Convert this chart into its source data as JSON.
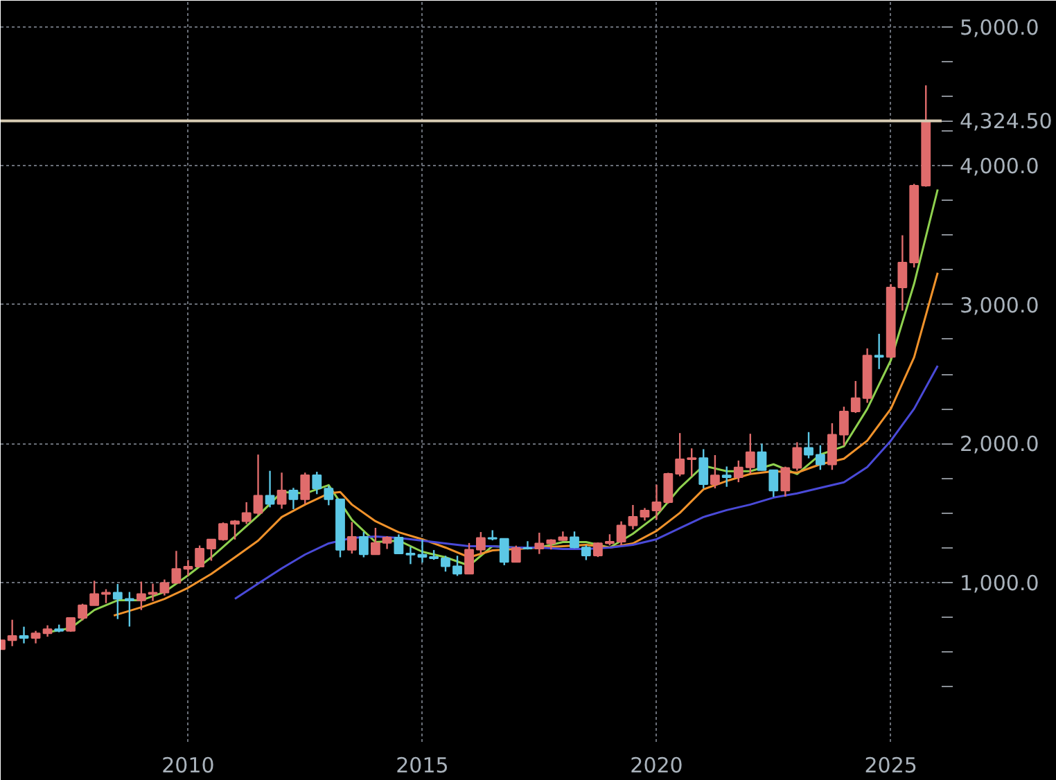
{
  "chart_data": {
    "type": "candlestick",
    "x": [
      "2006-01",
      "2006-04",
      "2006-07",
      "2006-10",
      "2007-01",
      "2007-04",
      "2007-07",
      "2007-10",
      "2008-01",
      "2008-04",
      "2008-07",
      "2008-10",
      "2009-01",
      "2009-04",
      "2009-07",
      "2009-10",
      "2010-01",
      "2010-04",
      "2010-07",
      "2010-10",
      "2011-01",
      "2011-04",
      "2011-07",
      "2011-10",
      "2012-01",
      "2012-04",
      "2012-07",
      "2012-10",
      "2013-01",
      "2013-04",
      "2013-07",
      "2013-10",
      "2014-01",
      "2014-04",
      "2014-07",
      "2014-10",
      "2015-01",
      "2015-04",
      "2015-07",
      "2015-10",
      "2016-01",
      "2016-04",
      "2016-07",
      "2016-10",
      "2017-01",
      "2017-04",
      "2017-07",
      "2017-10",
      "2018-01",
      "2018-04",
      "2018-07",
      "2018-10",
      "2019-01",
      "2019-04",
      "2019-07",
      "2019-10",
      "2020-01",
      "2020-04",
      "2020-07",
      "2020-10",
      "2021-01",
      "2021-04",
      "2021-07",
      "2021-10",
      "2022-01",
      "2022-04",
      "2022-07",
      "2022-10",
      "2023-01",
      "2023-04",
      "2023-07",
      "2023-10",
      "2024-01",
      "2024-04",
      "2024-07",
      "2024-10",
      "2025-01",
      "2025-04",
      "2025-07",
      "2025-10"
    ],
    "ohlc": [
      [
        517,
        585,
        517,
        582
      ],
      [
        582,
        730,
        540,
        614
      ],
      [
        614,
        680,
        560,
        599
      ],
      [
        599,
        650,
        560,
        632
      ],
      [
        632,
        690,
        608,
        662
      ],
      [
        662,
        695,
        640,
        650
      ],
      [
        650,
        745,
        643,
        743
      ],
      [
        743,
        845,
        725,
        834
      ],
      [
        834,
        1011,
        833,
        916
      ],
      [
        916,
        950,
        850,
        925
      ],
      [
        925,
        988,
        735,
        880
      ],
      [
        880,
        930,
        681,
        869
      ],
      [
        869,
        1005,
        800,
        916
      ],
      [
        916,
        990,
        865,
        926
      ],
      [
        926,
        1020,
        905,
        995
      ],
      [
        995,
        1226,
        995,
        1096
      ],
      [
        1096,
        1160,
        1045,
        1113
      ],
      [
        1113,
        1265,
        1110,
        1243
      ],
      [
        1243,
        1310,
        1155,
        1308
      ],
      [
        1308,
        1431,
        1300,
        1421
      ],
      [
        1421,
        1448,
        1308,
        1439
      ],
      [
        1439,
        1577,
        1420,
        1500
      ],
      [
        1500,
        1920,
        1485,
        1624
      ],
      [
        1624,
        1803,
        1540,
        1564
      ],
      [
        1564,
        1790,
        1530,
        1662
      ],
      [
        1662,
        1680,
        1527,
        1598
      ],
      [
        1598,
        1790,
        1565,
        1772
      ],
      [
        1772,
        1796,
        1635,
        1675
      ],
      [
        1675,
        1695,
        1555,
        1598
      ],
      [
        1598,
        1600,
        1180,
        1234
      ],
      [
        1234,
        1434,
        1207,
        1327
      ],
      [
        1327,
        1362,
        1180,
        1201
      ],
      [
        1201,
        1392,
        1200,
        1284
      ],
      [
        1284,
        1332,
        1240,
        1322
      ],
      [
        1322,
        1345,
        1205,
        1208
      ],
      [
        1208,
        1255,
        1131,
        1199
      ],
      [
        1199,
        1307,
        1142,
        1183
      ],
      [
        1183,
        1232,
        1162,
        1172
      ],
      [
        1172,
        1191,
        1077,
        1115
      ],
      [
        1115,
        1191,
        1046,
        1061
      ],
      [
        1061,
        1283,
        1060,
        1235
      ],
      [
        1235,
        1362,
        1200,
        1320
      ],
      [
        1320,
        1375,
        1302,
        1313
      ],
      [
        1313,
        1313,
        1123,
        1146
      ],
      [
        1146,
        1264,
        1146,
        1247
      ],
      [
        1247,
        1296,
        1236,
        1242
      ],
      [
        1242,
        1357,
        1204,
        1280
      ],
      [
        1280,
        1310,
        1236,
        1303
      ],
      [
        1303,
        1366,
        1300,
        1325
      ],
      [
        1325,
        1366,
        1245,
        1251
      ],
      [
        1251,
        1266,
        1160,
        1192
      ],
      [
        1192,
        1287,
        1182,
        1281
      ],
      [
        1281,
        1346,
        1266,
        1292
      ],
      [
        1292,
        1439,
        1266,
        1409
      ],
      [
        1409,
        1557,
        1381,
        1472
      ],
      [
        1472,
        1535,
        1445,
        1517
      ],
      [
        1517,
        1703,
        1451,
        1577
      ],
      [
        1577,
        1789,
        1567,
        1781
      ],
      [
        1781,
        2075,
        1764,
        1886
      ],
      [
        1886,
        1965,
        1764,
        1895
      ],
      [
        1895,
        1959,
        1677,
        1707
      ],
      [
        1707,
        1916,
        1677,
        1770
      ],
      [
        1770,
        1834,
        1688,
        1757
      ],
      [
        1757,
        1877,
        1721,
        1828
      ],
      [
        1828,
        2070,
        1780,
        1937
      ],
      [
        1937,
        1998,
        1805,
        1807
      ],
      [
        1807,
        1807,
        1615,
        1660
      ],
      [
        1660,
        1833,
        1618,
        1824
      ],
      [
        1824,
        2009,
        1804,
        1969
      ],
      [
        1969,
        2082,
        1893,
        1919
      ],
      [
        1919,
        1987,
        1810,
        1849
      ],
      [
        1849,
        2146,
        1810,
        2063
      ],
      [
        2063,
        2265,
        1984,
        2230
      ],
      [
        2230,
        2450,
        2220,
        2327
      ],
      [
        2327,
        2685,
        2293,
        2634
      ],
      [
        2634,
        2790,
        2536,
        2624
      ],
      [
        2624,
        3148,
        2614,
        3124
      ],
      [
        3124,
        3500,
        2957,
        3303
      ],
      [
        3303,
        3870,
        3268,
        3858
      ],
      [
        3858,
        4580,
        3850,
        4324.5
      ]
    ],
    "colors": [
      "#e06c6c",
      "#e06c6c",
      "#5cc8e6",
      "#e06c6c",
      "#e06c6c",
      "#5cc8e6",
      "#e06c6c",
      "#e06c6c",
      "#e06c6c",
      "#e06c6c",
      "#5cc8e6",
      "#5cc8e6",
      "#e06c6c",
      "#e06c6c",
      "#e06c6c",
      "#e06c6c",
      "#e06c6c",
      "#e06c6c",
      "#e06c6c",
      "#e06c6c",
      "#e06c6c",
      "#e06c6c",
      "#e06c6c",
      "#5cc8e6",
      "#e06c6c",
      "#5cc8e6",
      "#e06c6c",
      "#5cc8e6",
      "#5cc8e6",
      "#5cc8e6",
      "#e06c6c",
      "#5cc8e6",
      "#e06c6c",
      "#e06c6c",
      "#5cc8e6",
      "#5cc8e6",
      "#5cc8e6",
      "#5cc8e6",
      "#5cc8e6",
      "#5cc8e6",
      "#e06c6c",
      "#e06c6c",
      "#5cc8e6",
      "#5cc8e6",
      "#e06c6c",
      "#5cc8e6",
      "#e06c6c",
      "#e06c6c",
      "#e06c6c",
      "#5cc8e6",
      "#5cc8e6",
      "#e06c6c",
      "#e06c6c",
      "#e06c6c",
      "#e06c6c",
      "#e06c6c",
      "#e06c6c",
      "#e06c6c",
      "#e06c6c",
      "#e06c6c",
      "#5cc8e6",
      "#e06c6c",
      "#5cc8e6",
      "#e06c6c",
      "#e06c6c",
      "#5cc8e6",
      "#5cc8e6",
      "#e06c6c",
      "#e06c6c",
      "#5cc8e6",
      "#5cc8e6",
      "#e06c6c",
      "#e06c6c",
      "#e06c6c",
      "#e06c6c",
      "#5cc8e6",
      "#e06c6c",
      "#e06c6c",
      "#e06c6c",
      "#e06c6c"
    ],
    "series": [
      {
        "type": "line",
        "color": "#8fd14f",
        "x": [
          "2007-01",
          "2007-07",
          "2008-01",
          "2008-07",
          "2009-01",
          "2009-07",
          "2010-01",
          "2010-07",
          "2011-01",
          "2011-07",
          "2012-01",
          "2012-07",
          "2013-01",
          "2013-07",
          "2014-01",
          "2014-07",
          "2015-01",
          "2015-07",
          "2016-01",
          "2016-07",
          "2017-01",
          "2017-07",
          "2018-01",
          "2018-07",
          "2019-01",
          "2019-07",
          "2020-01",
          "2020-07",
          "2021-01",
          "2021-07",
          "2022-01",
          "2022-07",
          "2023-01",
          "2023-07",
          "2024-01",
          "2024-07",
          "2025-01",
          "2025-07",
          "2026-01"
        ],
        "values": [
          640,
          670,
          800,
          870,
          870,
          930,
          1050,
          1180,
          1330,
          1480,
          1650,
          1640,
          1700,
          1450,
          1290,
          1300,
          1220,
          1180,
          1120,
          1260,
          1250,
          1250,
          1290,
          1290,
          1250,
          1350,
          1480,
          1680,
          1840,
          1800,
          1800,
          1850,
          1780,
          1920,
          1980,
          2250,
          2600,
          3150,
          3830
        ]
      },
      {
        "type": "line",
        "color": "#f0922b",
        "x": [
          "2008-06",
          "2009-01",
          "2009-07",
          "2010-01",
          "2010-07",
          "2011-01",
          "2011-07",
          "2012-01",
          "2012-07",
          "2013-01",
          "2013-04",
          "2013-07",
          "2014-01",
          "2014-07",
          "2015-01",
          "2015-07",
          "2016-01",
          "2016-07",
          "2017-01",
          "2017-07",
          "2018-01",
          "2018-07",
          "2019-01",
          "2019-07",
          "2020-01",
          "2020-07",
          "2021-01",
          "2021-07",
          "2022-01",
          "2022-07",
          "2023-01",
          "2023-07",
          "2024-01",
          "2024-07",
          "2025-01",
          "2025-07",
          "2026-01"
        ],
        "values": [
          760,
          820,
          880,
          960,
          1060,
          1180,
          1300,
          1470,
          1560,
          1640,
          1650,
          1560,
          1440,
          1360,
          1310,
          1250,
          1180,
          1230,
          1240,
          1250,
          1260,
          1270,
          1250,
          1280,
          1370,
          1500,
          1670,
          1730,
          1780,
          1800,
          1790,
          1850,
          1890,
          2020,
          2250,
          2620,
          3230
        ]
      },
      {
        "type": "line",
        "color": "#4a4ad8",
        "x": [
          "2011-01",
          "2011-07",
          "2012-01",
          "2012-07",
          "2013-01",
          "2013-07",
          "2014-01",
          "2014-07",
          "2015-01",
          "2015-07",
          "2016-01",
          "2016-07",
          "2017-01",
          "2017-07",
          "2018-01",
          "2018-07",
          "2019-01",
          "2019-07",
          "2020-01",
          "2020-07",
          "2021-01",
          "2021-07",
          "2022-01",
          "2022-07",
          "2023-01",
          "2023-07",
          "2024-01",
          "2024-07",
          "2025-01",
          "2025-07",
          "2026-01"
        ],
        "values": [
          880,
          990,
          1100,
          1200,
          1280,
          1320,
          1330,
          1320,
          1300,
          1280,
          1260,
          1260,
          1250,
          1250,
          1240,
          1240,
          1250,
          1270,
          1310,
          1390,
          1470,
          1520,
          1560,
          1610,
          1640,
          1680,
          1720,
          1830,
          2020,
          2250,
          2560
        ]
      }
    ],
    "xlim": [
      "2006-01",
      "2026-02"
    ],
    "xticks": [
      {
        "value": "2010-01",
        "label": "2010"
      },
      {
        "value": "2015-01",
        "label": "2015"
      },
      {
        "value": "2020-01",
        "label": "2020"
      },
      {
        "value": "2025-01",
        "label": "2025"
      }
    ],
    "ylim": [
      -150,
      5190
    ],
    "yticks": [
      {
        "value": 250,
        "label": null
      },
      {
        "value": 500,
        "label": null
      },
      {
        "value": 750,
        "label": null
      },
      {
        "value": 1000,
        "label": "1,000.0"
      },
      {
        "value": 1250,
        "label": null
      },
      {
        "value": 1500,
        "label": null
      },
      {
        "value": 1750,
        "label": null
      },
      {
        "value": 2000,
        "label": "2,000.0"
      },
      {
        "value": 2250,
        "label": null
      },
      {
        "value": 2500,
        "label": null
      },
      {
        "value": 2750,
        "label": null
      },
      {
        "value": 3000,
        "label": "3,000.0"
      },
      {
        "value": 3250,
        "label": null
      },
      {
        "value": 3500,
        "label": null
      },
      {
        "value": 3750,
        "label": null
      },
      {
        "value": 4000,
        "label": "4,000.0"
      },
      {
        "value": 4250,
        "label": null
      },
      {
        "value": 4500,
        "label": null
      },
      {
        "value": 4750,
        "label": null
      },
      {
        "value": 5000,
        "label": "5,000.0"
      }
    ],
    "ref_lines": [
      {
        "axis": "y",
        "value": 4324.5,
        "label": "4,324.50",
        "color": "#d8ccb4"
      }
    ],
    "grid": true
  }
}
